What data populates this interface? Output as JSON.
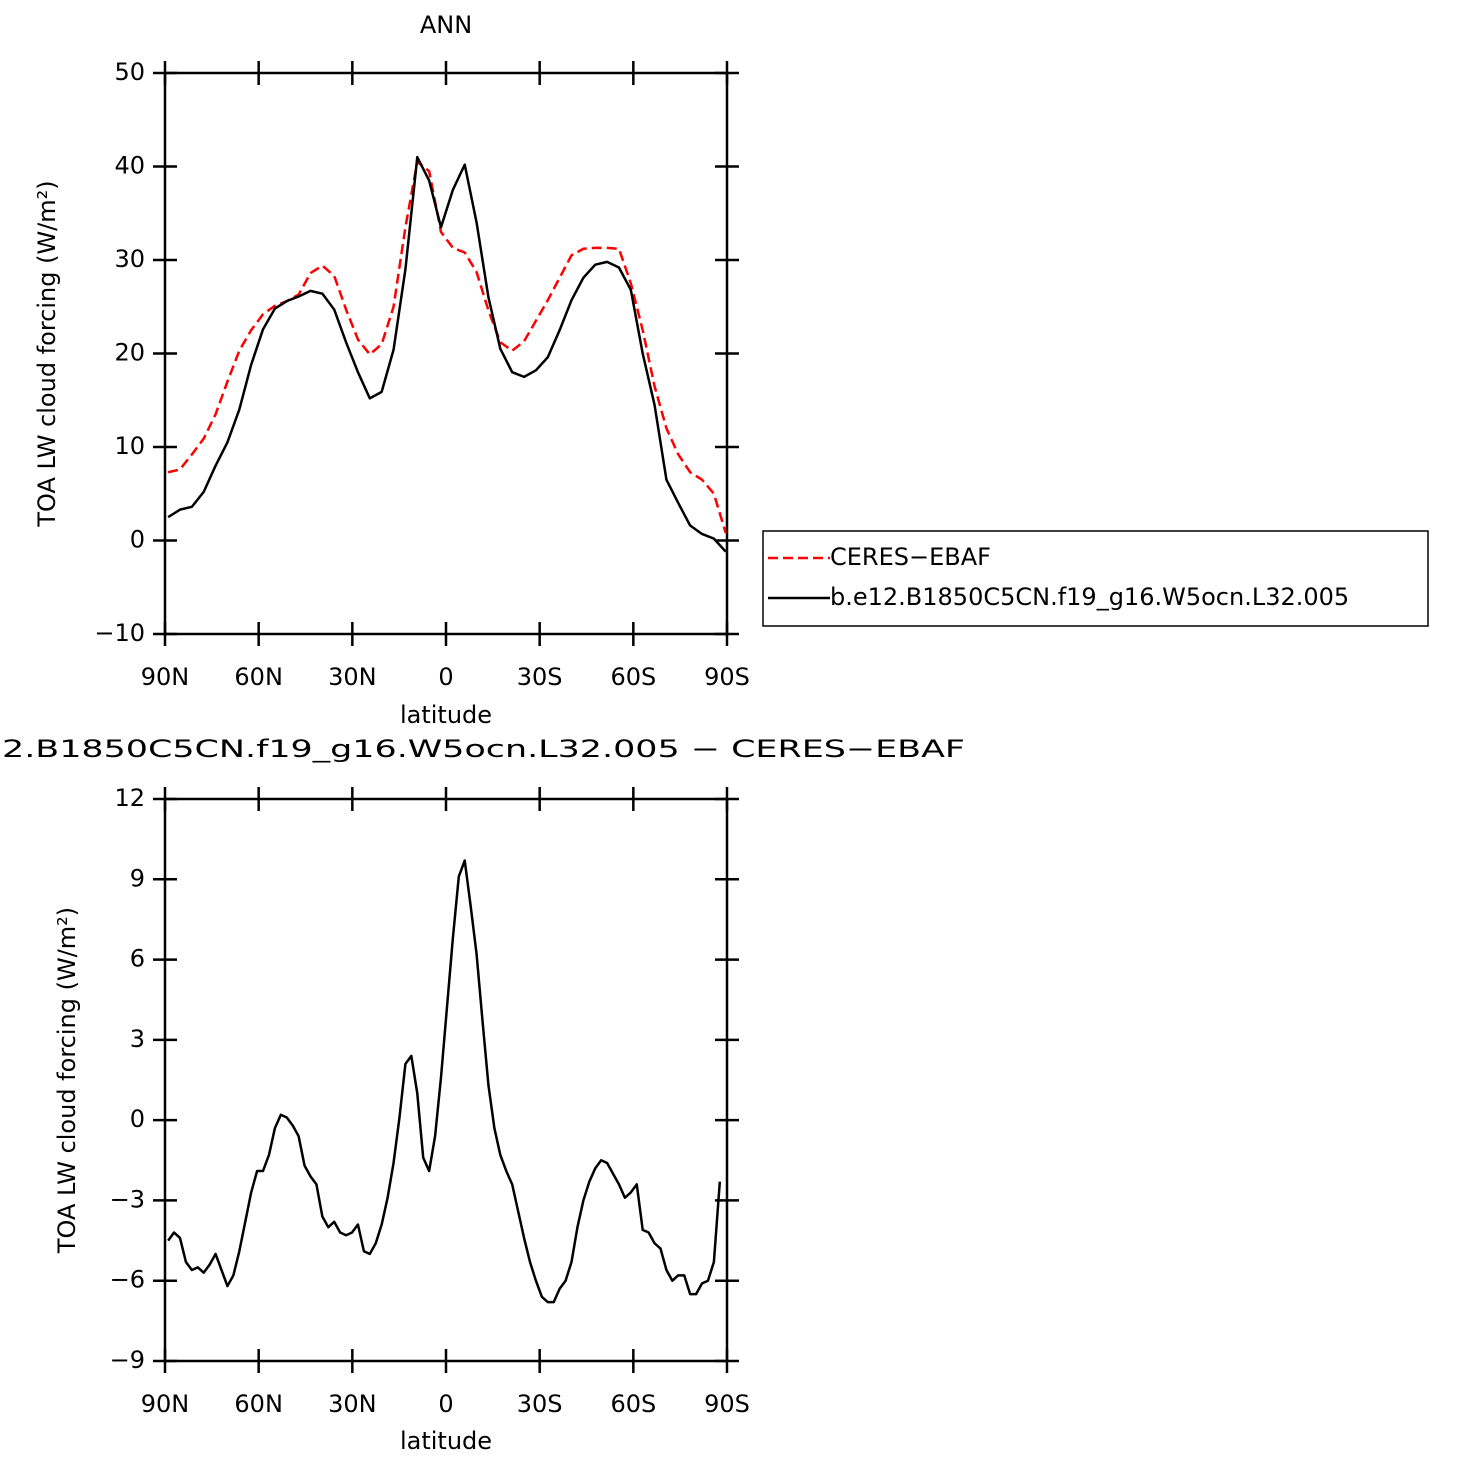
{
  "chart_data": [
    {
      "type": "line",
      "title": "ANN",
      "x_label": "latitude",
      "y_label": "TOA LW cloud forcing (W/m²)",
      "x": [
        89,
        85.2,
        81.4,
        77.6,
        73.8,
        70,
        66.2,
        62.4,
        58.6,
        54.8,
        51,
        47.2,
        43.4,
        39.6,
        35.8,
        32,
        28.2,
        24.4,
        20.6,
        16.8,
        13,
        9.2,
        5.4,
        1.6,
        -2.2,
        -6,
        -9.8,
        -13.6,
        -17.4,
        -21.2,
        -25,
        -28.8,
        -32.6,
        -36.4,
        -40.2,
        -44,
        -47.8,
        -51.6,
        -55.4,
        -59.2,
        -63,
        -66.8,
        -70.6,
        -74.4,
        -78.2,
        -82,
        -85.8,
        -89.6
      ],
      "series": [
        {
          "name": "CERES−EBAF",
          "color": "#ff0000",
          "style": "dashed",
          "values": [
            7.3,
            7.6,
            9.2,
            10.9,
            13.5,
            17,
            20.3,
            22.5,
            24.2,
            25.1,
            25.6,
            26.3,
            28.6,
            29.4,
            28.3,
            24.7,
            21.5,
            19.9,
            21,
            25,
            33.5,
            40.5,
            39.5,
            33,
            31.3,
            30.8,
            28.7,
            24.6,
            21.2,
            20.3,
            21.3,
            23.5,
            25.7,
            28.1,
            30.5,
            31.2,
            31.3,
            31.3,
            31.2,
            27.5,
            22.5,
            16.5,
            12,
            9.2,
            7.3,
            6.5,
            5,
            0.8
          ]
        },
        {
          "name": "b.e12.B1850C5CN.f19_g16.W5ocn.L32.005",
          "color": "#000000",
          "style": "solid",
          "values": [
            2.5,
            3.3,
            3.6,
            5.2,
            8,
            10.5,
            14,
            18.8,
            22.6,
            24.8,
            25.6,
            26.1,
            26.7,
            26.4,
            24.7,
            21.2,
            18,
            15.2,
            15.9,
            20.4,
            29,
            41,
            38.5,
            33.5,
            37.5,
            40.2,
            34,
            26,
            20.5,
            18,
            17.5,
            18.2,
            19.6,
            22.5,
            25.7,
            28.1,
            29.5,
            29.8,
            29.2,
            26.8,
            20,
            14.5,
            6.5,
            4,
            1.6,
            0.7,
            0.2,
            -1.2
          ]
        }
      ],
      "xlim": [
        90,
        -90
      ],
      "xticks": [
        {
          "value": 90,
          "label": "90N"
        },
        {
          "value": 60,
          "label": "60N"
        },
        {
          "value": 30,
          "label": "30N"
        },
        0,
        {
          "value": -30,
          "label": "30S"
        },
        {
          "value": -60,
          "label": "60S"
        },
        {
          "value": -90,
          "label": "90S"
        }
      ],
      "ylim": [
        -10,
        50
      ],
      "yticks": [
        {
          "value": -10,
          "label": "−10"
        },
        0,
        10,
        20,
        30,
        40,
        50
      ],
      "legend": "outside-right"
    },
    {
      "type": "line",
      "title": "2.B1850C5CN.f19_g16.W5ocn.L32.005 − CERES−EBAF",
      "x_label": "latitude",
      "y_label": "TOA LW cloud forcing (W/m²)",
      "x": [
        89,
        87.1,
        85.2,
        83.3,
        81.4,
        79.5,
        77.6,
        75.7,
        73.8,
        71.9,
        70,
        68.1,
        66.2,
        64.3,
        62.4,
        60.5,
        58.6,
        56.7,
        54.8,
        52.9,
        51,
        49.1,
        47.2,
        45.3,
        43.4,
        41.5,
        39.6,
        37.7,
        35.8,
        33.9,
        32,
        30.1,
        28.2,
        26.3,
        24.4,
        22.5,
        20.6,
        18.7,
        16.8,
        14.9,
        13,
        11.1,
        9.2,
        7.3,
        5.4,
        3.5,
        1.6,
        -0.3,
        -2.2,
        -4.1,
        -6,
        -7.9,
        -9.8,
        -11.7,
        -13.6,
        -15.5,
        -17.4,
        -19.3,
        -21.2,
        -23.1,
        -25,
        -26.9,
        -28.8,
        -30.7,
        -32.6,
        -34.5,
        -36.4,
        -38.3,
        -40.2,
        -42.1,
        -44,
        -45.9,
        -47.8,
        -49.7,
        -51.6,
        -53.5,
        -55.4,
        -57.3,
        -59.2,
        -61.1,
        -63,
        -64.9,
        -66.8,
        -68.7,
        -70.6,
        -72.5,
        -74.4,
        -76.3,
        -78.2,
        -80.1,
        -82,
        -83.9,
        -85.8,
        -87.7
      ],
      "values": [
        -4.5,
        -4.2,
        -4.4,
        -5.3,
        -5.6,
        -5.5,
        -5.7,
        -5.4,
        -5.0,
        -5.6,
        -6.2,
        -5.8,
        -4.9,
        -3.8,
        -2.7,
        -1.9,
        -1.9,
        -1.3,
        -0.3,
        0.2,
        0.1,
        -0.2,
        -0.6,
        -1.7,
        -2.1,
        -2.4,
        -3.6,
        -4.0,
        -3.8,
        -4.2,
        -4.3,
        -4.2,
        -3.9,
        -4.9,
        -5.0,
        -4.6,
        -3.9,
        -2.9,
        -1.6,
        0.1,
        2.1,
        2.4,
        1.0,
        -1.4,
        -1.9,
        -0.6,
        1.6,
        4.2,
        6.8,
        9.1,
        9.7,
        8.0,
        6.2,
        3.7,
        1.3,
        -0.3,
        -1.3,
        -1.9,
        -2.4,
        -3.4,
        -4.4,
        -5.3,
        -6.0,
        -6.6,
        -6.8,
        -6.8,
        -6.3,
        -6.0,
        -5.3,
        -4.0,
        -3.0,
        -2.3,
        -1.8,
        -1.5,
        -1.6,
        -2.0,
        -2.4,
        -2.9,
        -2.7,
        -2.4,
        -4.1,
        -4.2,
        -4.6,
        -4.8,
        -5.6,
        -6.0,
        -5.8,
        -5.8,
        -6.5,
        -6.5,
        -6.1,
        -6.0,
        -5.3,
        -2.3
      ],
      "color": "#000000",
      "xlim": [
        90,
        -90
      ],
      "xticks": [
        {
          "value": 90,
          "label": "90N"
        },
        {
          "value": 60,
          "label": "60N"
        },
        {
          "value": 30,
          "label": "30N"
        },
        0,
        {
          "value": -30,
          "label": "30S"
        },
        {
          "value": -60,
          "label": "60S"
        },
        {
          "value": -90,
          "label": "90S"
        }
      ],
      "ylim": [
        -9,
        12
      ],
      "yticks": [
        {
          "value": -9,
          "label": "−9"
        },
        {
          "value": -6,
          "label": "−6"
        },
        {
          "value": -3,
          "label": "−3"
        },
        0,
        3,
        6,
        9,
        12
      ]
    }
  ]
}
